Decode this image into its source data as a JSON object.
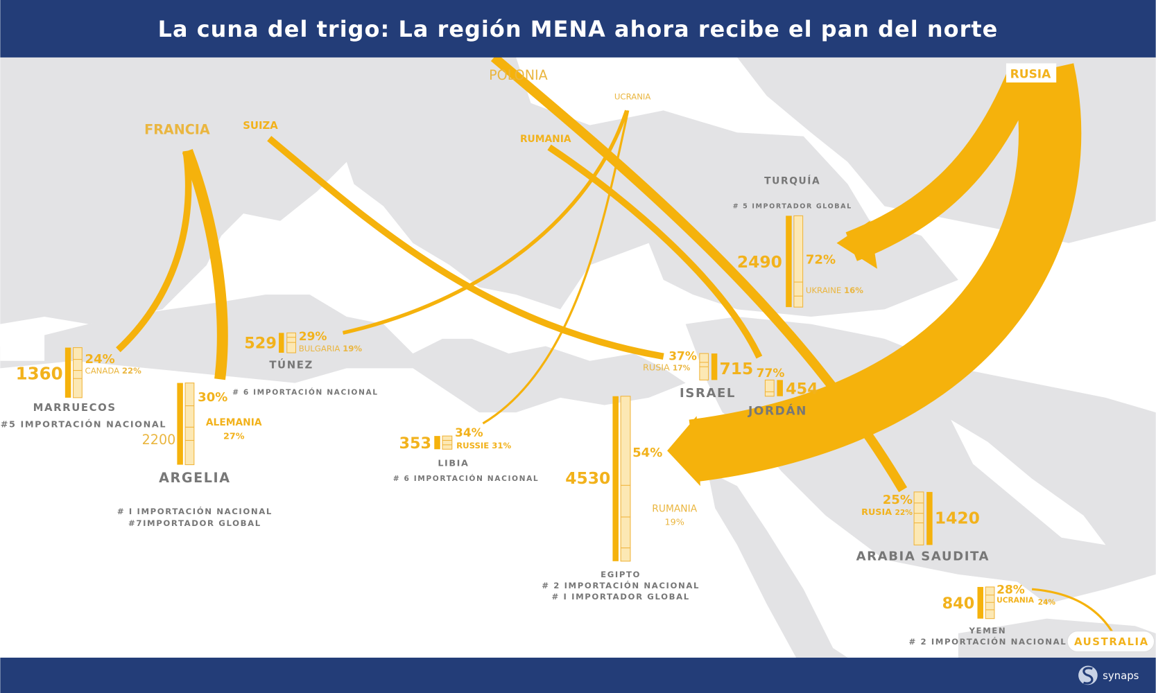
{
  "title": "La cuna del trigo: La región MENA ahora recibe el pan del norte",
  "colors": {
    "header": "#233d78",
    "flow": "#f5b20c",
    "land": "#e3e3e5",
    "label": "#777777"
  },
  "logo": {
    "text": "synaps",
    "icon": "synaps-s-logo"
  },
  "suppliers": {
    "polonia": "POLONIA",
    "rusia": "RUSIA",
    "ucrania": "UCRANIA",
    "suiza": "SUIZA",
    "francia": "FRANCIA",
    "rumania": "RUMANIA",
    "australia": "AUSTRALIA"
  },
  "flows": [
    {
      "from": "FRANCIA",
      "to": "MARRUECOS"
    },
    {
      "from": "FRANCIA",
      "to": "ARGELIA"
    },
    {
      "from": "SUIZA",
      "to": "ISRAEL"
    },
    {
      "from": "UCRANIA",
      "to": "TÚNEZ"
    },
    {
      "from": "UCRANIA",
      "to": "LIBIA"
    },
    {
      "from": "RUMANIA",
      "to": "JORDÁN"
    },
    {
      "from": "POLONIA",
      "to": "ARABIA SAUDITA"
    },
    {
      "from": "RUSIA",
      "to": "TURQUÍA"
    },
    {
      "from": "RUSIA",
      "to": "EGIPTO"
    },
    {
      "from": "AUSTRALIA",
      "to": "YEMEN"
    }
  ],
  "countries": {
    "marruecos": {
      "name": "MARRUECOS",
      "volume": "1360",
      "top_pct": "24%",
      "second": "CANADA",
      "second_pct": "22%",
      "rank": "#5 IMPORTACIÓN NACIONAL"
    },
    "argelia": {
      "name": "ARGELIA",
      "volume": "2200",
      "top_pct": "30%",
      "second": "ALEMANIA",
      "second_pct": "27%",
      "note": "# 6  IMPORTACIÓN NACIONAL",
      "rank": "# I IMPORTACIÓN NACIONAL",
      "rank2": "#7IMPORTADOR GLOBAL"
    },
    "tunez": {
      "name": "TÚNEZ",
      "volume": "529",
      "top_pct": "29%",
      "second": "BULGARIA",
      "second_pct": "19%"
    },
    "libia": {
      "name": "LIBIA",
      "volume": "353",
      "top_pct": "34%",
      "second": "RUSSIE",
      "second_pct": "31%",
      "rank": "# 6 IMPORTACIÓN NACIONAL"
    },
    "israel": {
      "name": "ISRAEL",
      "volume": "715",
      "top_pct": "37%",
      "second": "RUSIA",
      "second_pct": "17%"
    },
    "jordan": {
      "name": "JORDÁN",
      "volume": "454",
      "top_pct": "77%"
    },
    "egipto": {
      "name": "EGIPTO",
      "volume": "4530",
      "top_pct": "54%",
      "second": "RUMANIA",
      "second_pct": "19%",
      "rank": "# 2 IMPORTACIÓN NACIONAL",
      "rank2": "# I IMPORTADOR GLOBAL"
    },
    "turquia": {
      "name": "TURQUÍA",
      "volume": "2490",
      "top_pct": "72%",
      "second": "UKRAINE",
      "second_pct": "16%",
      "rank": "# 5 IMPORTADOR GLOBAL"
    },
    "arabia": {
      "name": "ARABIA SAUDITA",
      "volume": "1420",
      "top_pct": "25%",
      "second": "RUSIA",
      "second_pct": "22%"
    },
    "yemen": {
      "name": "YEMEN",
      "volume": "840",
      "top_pct": "28%",
      "second": "UCRANIA",
      "second_pct": "24%",
      "rank": "# 2 IMPORTACIÓN NACIONAL"
    }
  }
}
